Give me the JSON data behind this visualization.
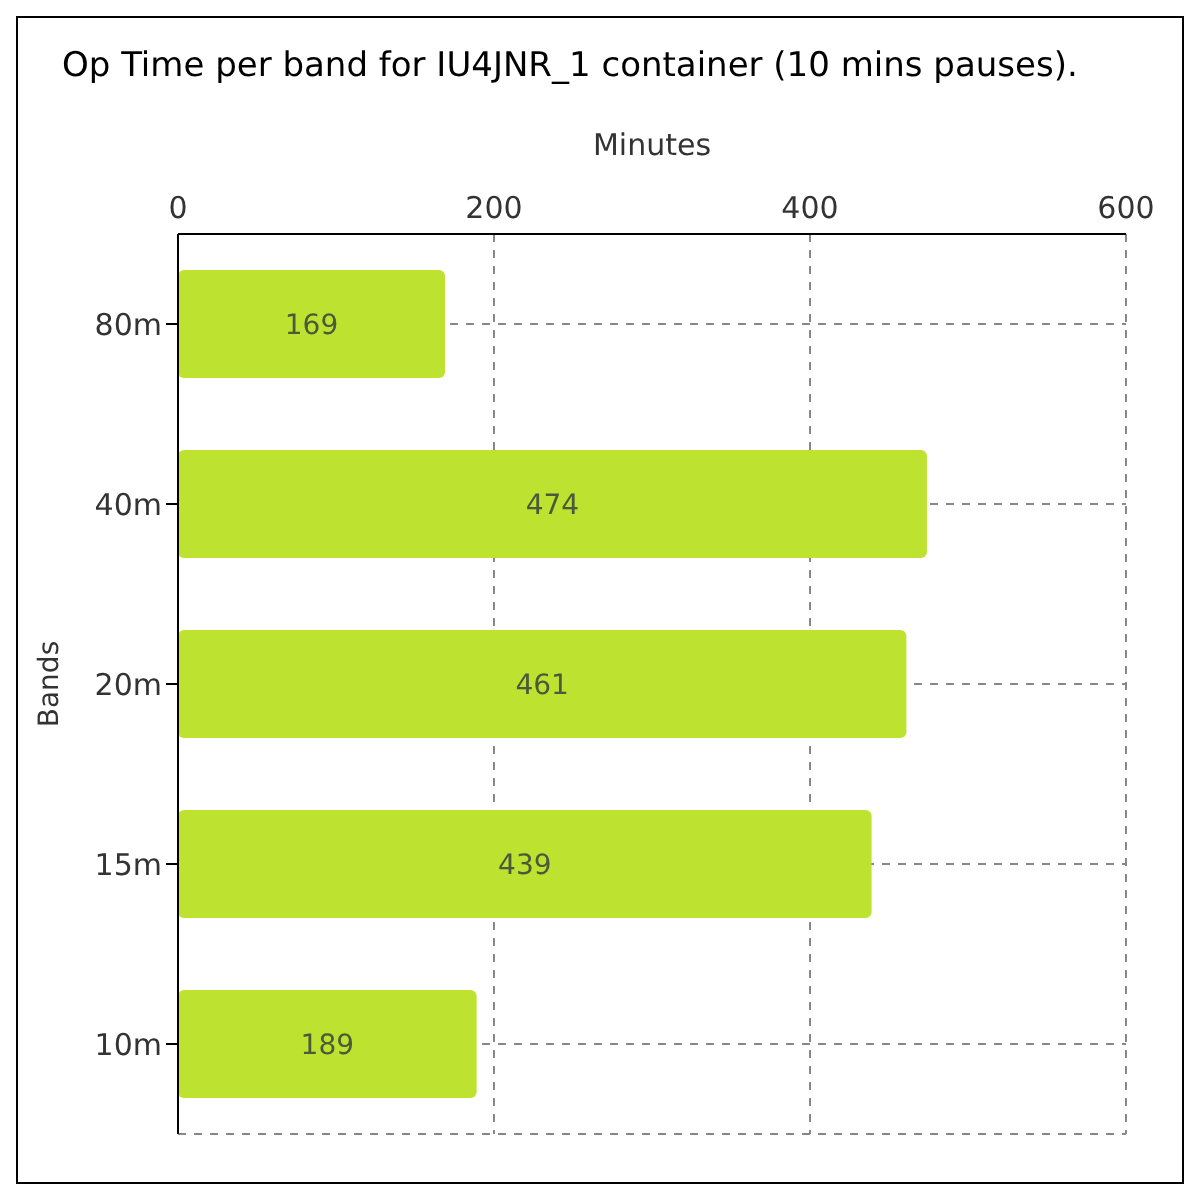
{
  "chart_data": {
    "type": "bar",
    "orientation": "horizontal",
    "title": "Op Time per band for IU4JNR_1 container (10 mins pauses).",
    "xlabel": "Minutes",
    "ylabel": "Bands",
    "categories": [
      "80m",
      "40m",
      "20m",
      "15m",
      "10m"
    ],
    "values": [
      169,
      474,
      461,
      439,
      189
    ],
    "color": "#bde22f",
    "xlim": [
      0,
      600
    ],
    "xticks": [
      0,
      200,
      400,
      600
    ],
    "grid": true,
    "data_labels": true
  }
}
